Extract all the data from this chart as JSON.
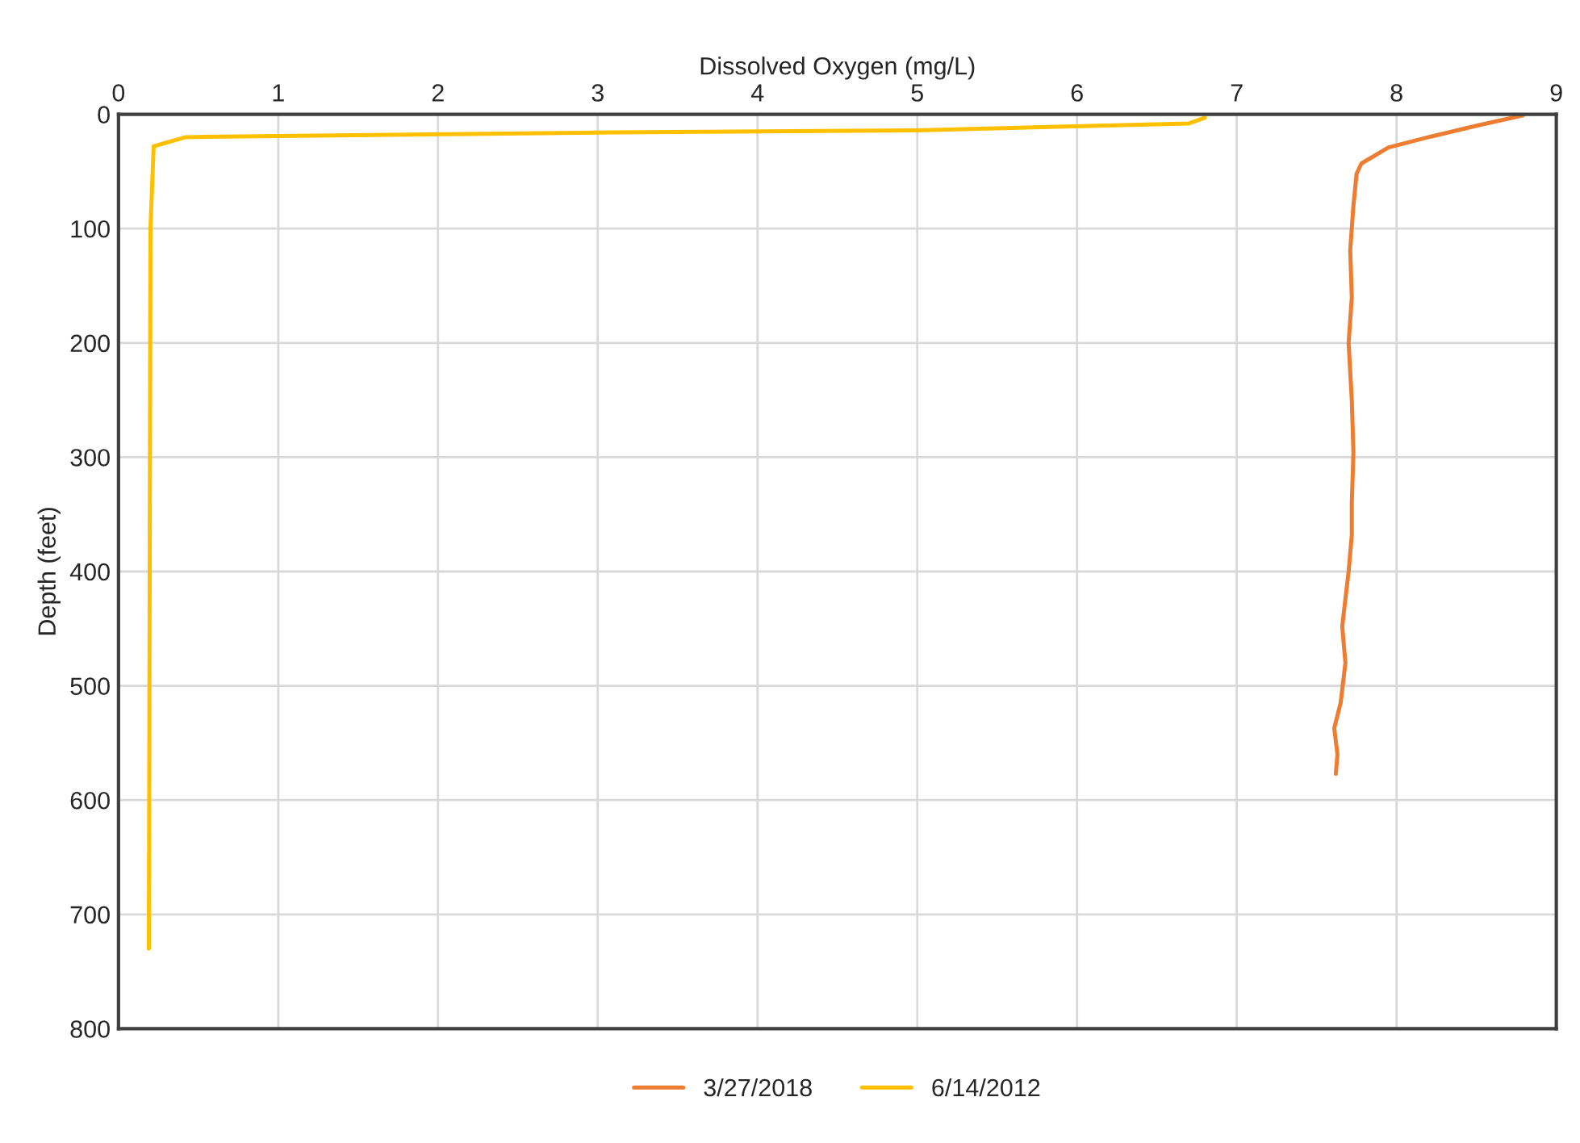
{
  "chart_data": {
    "type": "line",
    "xlabel": "Dissolved Oxygen (mg/L)",
    "ylabel": "Depth (feet)",
    "xlim": [
      0,
      9
    ],
    "xticks": [
      0,
      1,
      2,
      3,
      4,
      5,
      6,
      7,
      8,
      9
    ],
    "ylim": [
      800,
      0
    ],
    "yticks": [
      0,
      100,
      200,
      300,
      400,
      500,
      600,
      700,
      800
    ],
    "grid": true,
    "legend": "bottom",
    "marker": "none",
    "line_style": "solid",
    "series": [
      {
        "name": "3/27/2018",
        "color": "#ed7d31",
        "x": [
          8.79,
          8.5,
          8.2,
          7.95,
          7.78,
          7.75,
          7.73,
          7.71,
          7.72,
          7.7,
          7.72,
          7.73,
          7.72,
          7.72,
          7.7,
          7.66,
          7.68,
          7.65,
          7.61,
          7.63,
          7.62
        ],
        "values": [
          1,
          10,
          20,
          29,
          43,
          52,
          80,
          119,
          160,
          200,
          250,
          296,
          340,
          368,
          400,
          448,
          480,
          515,
          537,
          560,
          577
        ]
      },
      {
        "name": "6/14/2012",
        "color": "#ffc000",
        "x": [
          6.8,
          6.7,
          5.0,
          3.0,
          1.0,
          0.42,
          0.22,
          0.2,
          0.19
        ],
        "values": [
          3,
          8,
          14,
          16,
          19,
          20,
          28,
          100,
          730
        ]
      }
    ]
  }
}
